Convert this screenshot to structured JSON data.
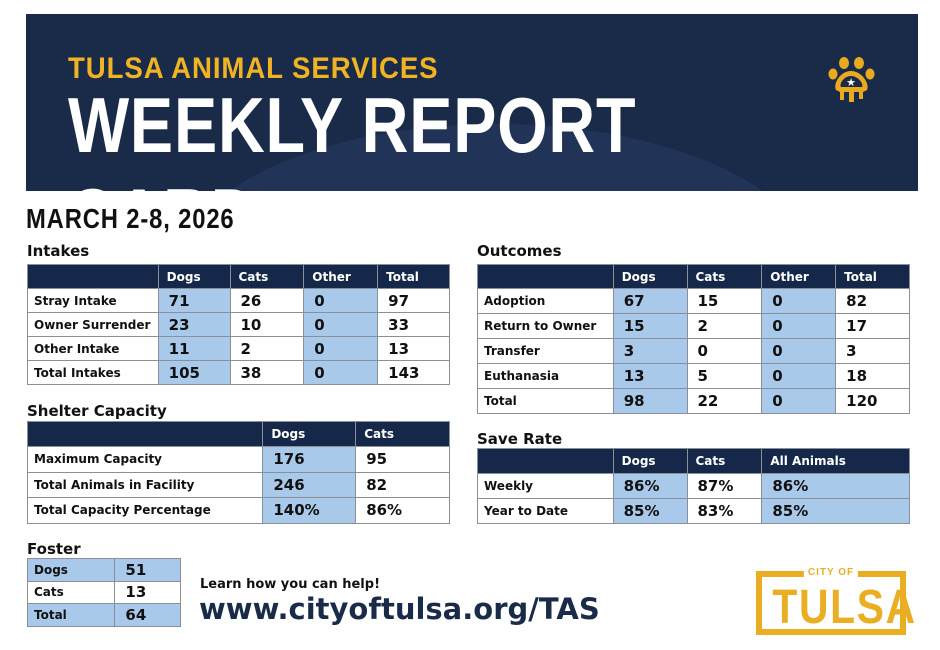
{
  "header": {
    "subtitle": "TULSA ANIMAL SERVICES",
    "title": "WEEKLY REPORT CARD",
    "date": "MARCH 2-8, 2026",
    "brand_color": "#1a2b4a",
    "accent_color": "#f0b323"
  },
  "intakes": {
    "title": "Intakes",
    "columns": [
      "",
      "Dogs",
      "Cats",
      "Other",
      "Total"
    ],
    "rows": [
      [
        "Stray Intake",
        "71",
        "26",
        "0",
        "97"
      ],
      [
        "Owner Surrender",
        "23",
        "10",
        "0",
        "33"
      ],
      [
        "Other Intake",
        "11",
        "2",
        "0",
        "13"
      ],
      [
        "Total Intakes",
        "105",
        "38",
        "0",
        "143"
      ]
    ]
  },
  "outcomes": {
    "title": "Outcomes",
    "columns": [
      "",
      "Dogs",
      "Cats",
      "Other",
      "Total"
    ],
    "rows": [
      [
        "Adoption",
        "67",
        "15",
        "0",
        "82"
      ],
      [
        "Return to Owner",
        "15",
        "2",
        "0",
        "17"
      ],
      [
        "Transfer",
        "3",
        "0",
        "0",
        "3"
      ],
      [
        "Euthanasia",
        "13",
        "5",
        "0",
        "18"
      ],
      [
        "Total",
        "98",
        "22",
        "0",
        "120"
      ]
    ]
  },
  "capacity": {
    "title": "Shelter Capacity",
    "columns": [
      "",
      "Dogs",
      "Cats"
    ],
    "rows": [
      [
        "Maximum Capacity",
        "176",
        "95"
      ],
      [
        "Total Animals in Facility",
        "246",
        "82"
      ],
      [
        "Total Capacity Percentage",
        "140%",
        "86%"
      ]
    ]
  },
  "save_rate": {
    "title": "Save Rate",
    "columns": [
      "",
      "Dogs",
      "Cats",
      "All Animals"
    ],
    "rows": [
      [
        "Weekly",
        "86%",
        "87%",
        "86%"
      ],
      [
        "Year to Date",
        "85%",
        "83%",
        "85%"
      ]
    ]
  },
  "foster": {
    "title": "Foster",
    "rows": [
      [
        "Dogs",
        "51"
      ],
      [
        "Cats",
        "13"
      ],
      [
        "Total",
        "64"
      ]
    ]
  },
  "footer": {
    "learn": "Learn how you can help!",
    "url": "www.cityoftulsa.org/TAS",
    "logo_top": "CITY OF",
    "logo_main": "TULSA"
  },
  "highlight_color": "#a9c9ea"
}
